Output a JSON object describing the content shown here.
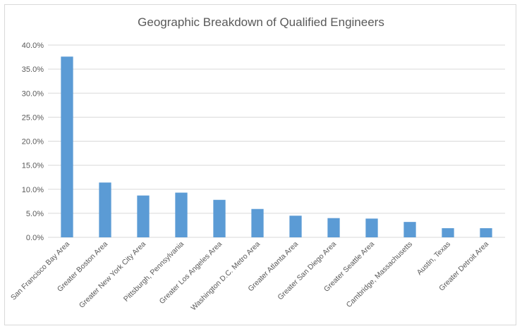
{
  "chart_data": {
    "type": "bar",
    "title": "Geographic Breakdown of Qualified Engineers",
    "xlabel": "",
    "ylabel": "",
    "ylim": [
      0,
      40
    ],
    "yticks": [
      "0.0%",
      "5.0%",
      "10.0%",
      "15.0%",
      "20.0%",
      "25.0%",
      "30.0%",
      "35.0%",
      "40.0%"
    ],
    "grid": true,
    "bar_color": "#5b9bd5",
    "categories": [
      "San Francisco Bay Area",
      "Greater Boston Area",
      "Greater New York City Area",
      "Pittsburgh, Pennsylvania",
      "Greater Los Angeles Area",
      "Washington D.C. Metro Area",
      "Greater Atlanta Area",
      "Greater San Diego Area",
      "Greater Seattle Area",
      "Cambridge, Massachusetts",
      "Austin, Texas",
      "Greater Detroit Area"
    ],
    "values": [
      37.6,
      11.4,
      8.7,
      9.3,
      7.8,
      5.9,
      4.5,
      4.0,
      3.9,
      3.2,
      1.9,
      1.9
    ]
  }
}
